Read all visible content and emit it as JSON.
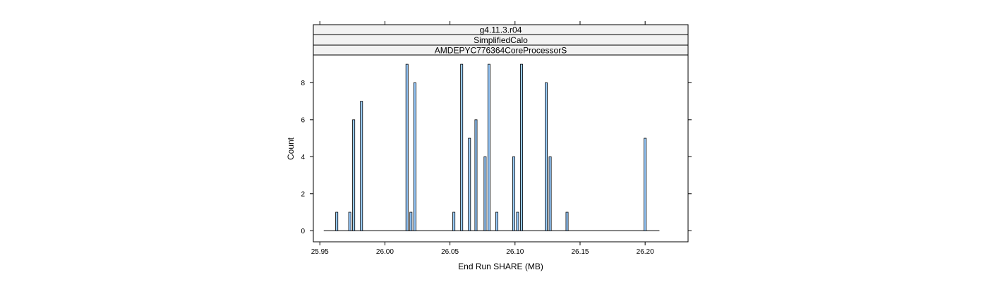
{
  "strips": [
    "g4.11.3.r04",
    "SimplifiedCalo",
    "AMDEPYC776364CoreProcessorS"
  ],
  "colors": {
    "bar_fill": "#99ccff",
    "bar_stroke": "#000000",
    "strip_bg": "#f2f2f2",
    "frame": "#000000"
  },
  "chart_data": {
    "type": "bar",
    "xlabel": "End Run SHARE (MB)",
    "ylabel": "Count",
    "xlim": [
      25.945,
      26.233
    ],
    "ylim": [
      -0.6,
      9.5
    ],
    "x_ticks": [
      {
        "value": 25.95,
        "label": "25.95"
      },
      {
        "value": 26.0,
        "label": "26.00"
      },
      {
        "value": 26.05,
        "label": "26.05"
      },
      {
        "value": 26.1,
        "label": "26.10"
      },
      {
        "value": 26.15,
        "label": "26.15"
      },
      {
        "value": 26.2,
        "label": "26.20"
      }
    ],
    "y_ticks": [
      {
        "value": 0,
        "label": "0"
      },
      {
        "value": 2,
        "label": "2"
      },
      {
        "value": 4,
        "label": "4"
      },
      {
        "value": 6,
        "label": "6"
      },
      {
        "value": 8,
        "label": "8"
      }
    ],
    "baseline": [
      25.953,
      26.211
    ],
    "bin_width": 0.0017,
    "bars": [
      {
        "x": 25.963,
        "count": 1
      },
      {
        "x": 25.973,
        "count": 1
      },
      {
        "x": 25.976,
        "count": 6
      },
      {
        "x": 25.982,
        "count": 7
      },
      {
        "x": 26.017,
        "count": 9
      },
      {
        "x": 26.02,
        "count": 1
      },
      {
        "x": 26.023,
        "count": 8
      },
      {
        "x": 26.053,
        "count": 1
      },
      {
        "x": 26.059,
        "count": 9
      },
      {
        "x": 26.065,
        "count": 5
      },
      {
        "x": 26.07,
        "count": 6
      },
      {
        "x": 26.077,
        "count": 4
      },
      {
        "x": 26.08,
        "count": 9
      },
      {
        "x": 26.086,
        "count": 1
      },
      {
        "x": 26.099,
        "count": 4
      },
      {
        "x": 26.102,
        "count": 1
      },
      {
        "x": 26.105,
        "count": 9
      },
      {
        "x": 26.124,
        "count": 8
      },
      {
        "x": 26.127,
        "count": 4
      },
      {
        "x": 26.14,
        "count": 1
      },
      {
        "x": 26.2,
        "count": 5
      }
    ]
  }
}
